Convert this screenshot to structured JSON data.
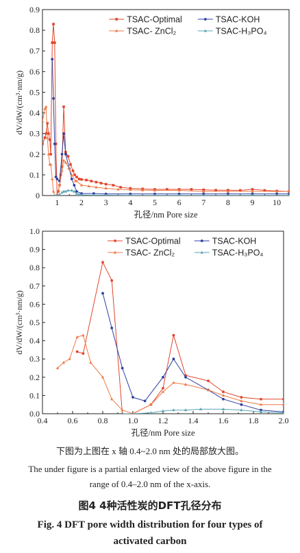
{
  "colors": {
    "optimal": "#e0452a",
    "koh": "#2b3fa0",
    "zncl2": "#f07a45",
    "h3po4": "#5aa5b5"
  },
  "chart_data": [
    {
      "type": "line",
      "title": "",
      "xlabel": "孔径/nm Pore size",
      "ylabel": "dV/dW/(cm³·nm/g)",
      "xlim": [
        0.4,
        10.5
      ],
      "ylim": [
        0,
        0.9
      ],
      "xticks": [
        "1",
        "2",
        "3",
        "4",
        "5",
        "6",
        "7",
        "8",
        "9",
        "10"
      ],
      "yticks": [
        "0",
        "0.1",
        "0.2",
        "0.3",
        "0.4",
        "0.5",
        "0.6",
        "0.7",
        "0.8",
        "0.9"
      ],
      "grid": false,
      "legend_position": "top-right",
      "legend": [
        {
          "key": "optimal",
          "label": "TSAC-Optimal"
        },
        {
          "key": "koh",
          "label": "TSAC-KOH"
        },
        {
          "key": "zncl2",
          "label": "TSAC- ZnCl₂"
        },
        {
          "key": "h3po4",
          "label": "TSAC-H₃PO₄"
        }
      ],
      "series": [
        {
          "key": "optimal",
          "marker": "square",
          "x": [
            0.4,
            0.5,
            0.55,
            0.6,
            0.65,
            0.7,
            0.74,
            0.8,
            0.85,
            0.9,
            0.95,
            1.0,
            1.05,
            1.1,
            1.15,
            1.2,
            1.27,
            1.35,
            1.45,
            1.55,
            1.65,
            1.72,
            1.8,
            1.9,
            2.0,
            2.2,
            2.4,
            2.6,
            2.8,
            3.0,
            3.3,
            3.6,
            4.0,
            4.5,
            5.0,
            5.5,
            6.0,
            6.5,
            7.0,
            7.5,
            8.0,
            8.5,
            9.0,
            9.5,
            10.0,
            10.5
          ],
          "y": [
            0.25,
            0.28,
            0.3,
            0.35,
            0.3,
            0.27,
            0.2,
            0.74,
            0.83,
            0.74,
            0.25,
            0.0,
            0.02,
            0.05,
            0.1,
            0.14,
            0.43,
            0.21,
            0.19,
            0.15,
            0.12,
            0.1,
            0.09,
            0.08,
            0.078,
            0.075,
            0.07,
            0.065,
            0.06,
            0.055,
            0.05,
            0.04,
            0.035,
            0.032,
            0.03,
            0.03,
            0.03,
            0.03,
            0.028,
            0.026,
            0.026,
            0.025,
            0.03,
            0.025,
            0.022,
            0.02
          ]
        },
        {
          "key": "koh",
          "marker": "circle",
          "x": [
            0.8,
            0.85,
            0.9,
            0.95,
            1.0,
            1.1,
            1.2,
            1.27,
            1.35,
            1.5,
            1.6,
            1.7,
            1.8,
            2.0,
            2.5,
            3.0,
            4.0,
            5.0,
            6.0,
            7.0,
            8.0,
            9.0,
            10.0,
            10.5
          ],
          "y": [
            0.66,
            0.47,
            0.25,
            0.09,
            0.08,
            0.07,
            0.2,
            0.3,
            0.2,
            0.13,
            0.08,
            0.05,
            0.02,
            0.01,
            0.01,
            0.008,
            0.008,
            0.008,
            0.008,
            0.008,
            0.008,
            0.008,
            0.008,
            0.008
          ]
        },
        {
          "key": "zncl2",
          "marker": "tri-up",
          "x": [
            0.4,
            0.5,
            0.55,
            0.6,
            0.65,
            0.7,
            0.74,
            0.8,
            0.85,
            0.9,
            1.0,
            1.1,
            1.2,
            1.27,
            1.35,
            1.5,
            1.6,
            1.75,
            1.8,
            2.0,
            2.3,
            2.6,
            3.0,
            3.5,
            4.0,
            4.5,
            5.0,
            6.0,
            7.0,
            8.0,
            9.0,
            10.0,
            10.5
          ],
          "y": [
            0.36,
            0.42,
            0.43,
            0.28,
            0.2,
            0.15,
            0.15,
            0.08,
            0.02,
            0.0,
            0.0,
            0.05,
            0.12,
            0.17,
            0.16,
            0.13,
            0.1,
            0.07,
            0.07,
            0.05,
            0.045,
            0.04,
            0.035,
            0.03,
            0.028,
            0.026,
            0.025,
            0.025,
            0.02,
            0.02,
            0.02,
            0.02,
            0.02
          ]
        },
        {
          "key": "h3po4",
          "marker": "tri-up",
          "x": [
            0.9,
            1.0,
            1.1,
            1.2,
            1.27,
            1.35,
            1.45,
            1.6,
            1.7,
            1.8,
            1.9,
            2.0,
            2.5,
            3.0,
            4.0,
            5.0,
            6.0,
            7.0,
            8.0,
            9.0,
            10.0,
            10.5
          ],
          "y": [
            0.0,
            0.0,
            0.005,
            0.015,
            0.02,
            0.02,
            0.025,
            0.025,
            0.02,
            0.01,
            0.005,
            0.003,
            0.002,
            0.002,
            0.001,
            0.001,
            0.001,
            0.001,
            0.001,
            0.001,
            0.001,
            0.001
          ]
        }
      ]
    },
    {
      "type": "line",
      "title": "",
      "xlabel": "孔径/nm Pore size",
      "ylabel": "dV/dW/(cm³·nm/g)",
      "xlim": [
        0.4,
        2.0
      ],
      "ylim": [
        0,
        1.0
      ],
      "xticks": [
        "0.4",
        "0.6",
        "0.8",
        "1.0",
        "1.2",
        "1.4",
        "1.6",
        "1.8",
        "2.0"
      ],
      "yticks": [
        "0.0",
        "0.1",
        "0.2",
        "0.3",
        "0.4",
        "0.5",
        "0.6",
        "0.7",
        "0.8",
        "0.9",
        "1.0"
      ],
      "grid": false,
      "legend_position": "top-right",
      "legend": [
        {
          "key": "optimal",
          "label": "TSAC-Optimal"
        },
        {
          "key": "koh",
          "label": "TSAC-KOH"
        },
        {
          "key": "zncl2",
          "label": "TSAC- ZnCl₂"
        },
        {
          "key": "h3po4",
          "label": "TSAC-H₃PO₄"
        }
      ],
      "series": [
        {
          "key": "optimal",
          "marker": "circle",
          "x": [
            0.63,
            0.67,
            0.8,
            0.86,
            0.93,
            1.0,
            1.12,
            1.2,
            1.27,
            1.35,
            1.5,
            1.6,
            1.72,
            1.85,
            2.0
          ],
          "y": [
            0.34,
            0.33,
            0.83,
            0.73,
            0.0,
            0.0,
            0.05,
            0.14,
            0.43,
            0.21,
            0.18,
            0.12,
            0.09,
            0.08,
            0.08
          ]
        },
        {
          "key": "koh",
          "marker": "circle",
          "x": [
            0.8,
            0.86,
            0.93,
            1.0,
            1.08,
            1.2,
            1.27,
            1.35,
            1.5,
            1.6,
            1.72,
            1.85,
            2.0
          ],
          "y": [
            0.66,
            0.47,
            0.25,
            0.09,
            0.07,
            0.2,
            0.3,
            0.2,
            0.13,
            0.08,
            0.05,
            0.02,
            0.01
          ]
        },
        {
          "key": "zncl2",
          "marker": "tri-up",
          "x": [
            0.5,
            0.54,
            0.58,
            0.63,
            0.67,
            0.72,
            0.8,
            0.86,
            0.93,
            1.0,
            1.12,
            1.2,
            1.27,
            1.35,
            1.5,
            1.6,
            1.72,
            1.85,
            2.0
          ],
          "y": [
            0.25,
            0.28,
            0.3,
            0.42,
            0.43,
            0.28,
            0.2,
            0.08,
            0.02,
            0.0,
            0.05,
            0.12,
            0.17,
            0.16,
            0.13,
            0.1,
            0.07,
            0.05,
            0.05
          ]
        },
        {
          "key": "h3po4",
          "marker": "tri-up",
          "x": [
            0.93,
            1.0,
            1.12,
            1.2,
            1.27,
            1.35,
            1.45,
            1.6,
            1.72,
            1.85,
            2.0
          ],
          "y": [
            0.0,
            0.0,
            0.005,
            0.015,
            0.02,
            0.02,
            0.025,
            0.025,
            0.02,
            0.01,
            0.005
          ]
        }
      ]
    }
  ],
  "captions": {
    "note_cn": "下图为上图在 x 轴 0.4~2.0 nm 处的局部放大图。",
    "note_en_1": "The under figure is a partial enlarged view of the above figure in the",
    "note_en_2": "range of 0.4–2.0 nm of the x-axis.",
    "fig_cn": "图4  4种活性炭的DFT孔径分布",
    "fig_en_1": "Fig. 4   DFT pore width distribution for four types of",
    "fig_en_2": "activated carbon"
  }
}
